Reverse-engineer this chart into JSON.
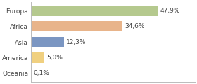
{
  "categories": [
    "Europa",
    "Africa",
    "Asia",
    "America",
    "Oceania"
  ],
  "values": [
    47.9,
    34.6,
    12.3,
    5.0,
    0.1
  ],
  "labels": [
    "47,9%",
    "34,6%",
    "12,3%",
    "5,0%",
    "0,1%"
  ],
  "colors": [
    "#b5c98e",
    "#e8b48a",
    "#7b96c2",
    "#f0d080",
    "#c8c8c8"
  ],
  "background_color": "#ffffff",
  "label_fontsize": 6.5,
  "tick_fontsize": 6.5,
  "xlim": 62
}
